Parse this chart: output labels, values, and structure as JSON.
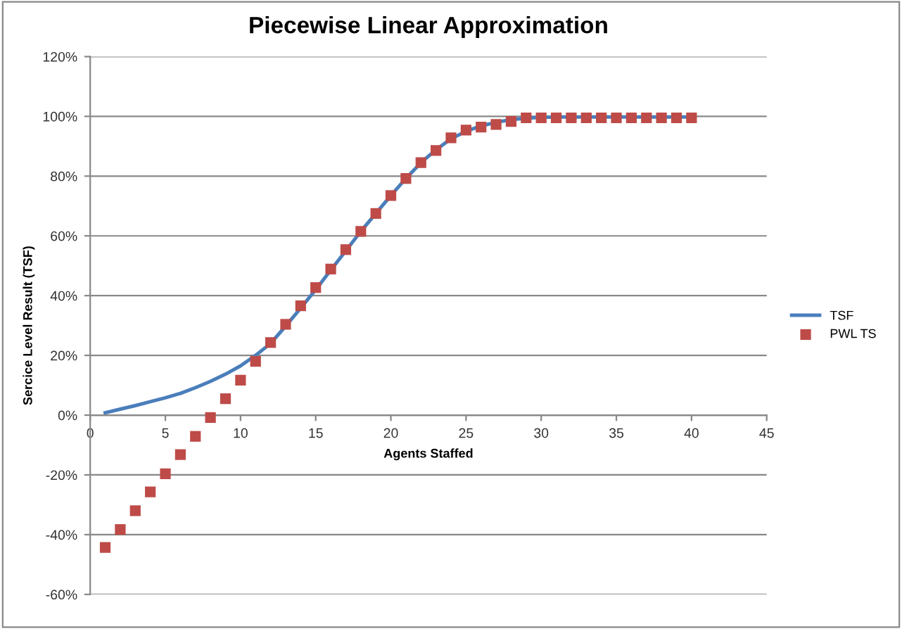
{
  "chart_data": {
    "type": "line",
    "title": "Piecewise Linear Approximation",
    "xlabel": "Agents Staffed",
    "ylabel": "Sercice Level Result (TSF)",
    "x": [
      1,
      2,
      3,
      4,
      5,
      6,
      7,
      8,
      9,
      10,
      11,
      12,
      13,
      14,
      15,
      16,
      17,
      18,
      19,
      20,
      21,
      22,
      23,
      24,
      25,
      26,
      27,
      28,
      29,
      30,
      31,
      32,
      33,
      34,
      35,
      36,
      37,
      38,
      39,
      40
    ],
    "series": [
      {
        "name": "TSF",
        "color": "#4a7ebb",
        "marker": "none",
        "values": [
          0.8,
          2.0,
          3.2,
          4.5,
          5.8,
          7.3,
          9.2,
          11.3,
          13.7,
          16.5,
          20.0,
          24.0,
          29.8,
          35.8,
          42.0,
          48.5,
          55.0,
          61.5,
          67.5,
          73.5,
          79.2,
          84.5,
          88.8,
          92.5,
          95.0,
          96.8,
          98.0,
          98.9,
          99.4,
          99.7,
          99.8,
          99.8,
          99.8,
          99.8,
          99.8,
          99.8,
          99.8,
          99.8,
          99.8,
          99.8
        ]
      },
      {
        "name": "PWL TS",
        "type": "scatter",
        "color": "#be4b48",
        "marker": "square",
        "values": [
          -44.3,
          -38.3,
          -32.0,
          -25.7,
          -19.6,
          -13.2,
          -7.1,
          -0.8,
          5.5,
          11.7,
          18.0,
          24.3,
          30.4,
          36.6,
          42.7,
          48.9,
          55.4,
          61.5,
          67.5,
          73.5,
          79.2,
          84.5,
          88.6,
          92.8,
          95.4,
          96.4,
          97.3,
          98.3,
          99.5,
          99.5,
          99.5,
          99.5,
          99.5,
          99.5,
          99.5,
          99.5,
          99.5,
          99.5,
          99.5,
          99.5
        ]
      }
    ],
    "xlim": [
      0,
      45
    ],
    "xticks": [
      0,
      5,
      10,
      15,
      20,
      25,
      30,
      35,
      40,
      45
    ],
    "ylim": [
      -60,
      120
    ],
    "yticks": [
      {
        "value": -60,
        "label": "-60%"
      },
      {
        "value": -40,
        "label": "-40%"
      },
      {
        "value": -20,
        "label": "-20%"
      },
      {
        "value": 0,
        "label": "0%"
      },
      {
        "value": 20,
        "label": "20%"
      },
      {
        "value": 40,
        "label": "40%"
      },
      {
        "value": 60,
        "label": "60%"
      },
      {
        "value": 80,
        "label": "80%"
      },
      {
        "value": 100,
        "label": "100%"
      },
      {
        "value": 120,
        "label": "120%"
      }
    ],
    "grid": "y",
    "legend": "right"
  }
}
